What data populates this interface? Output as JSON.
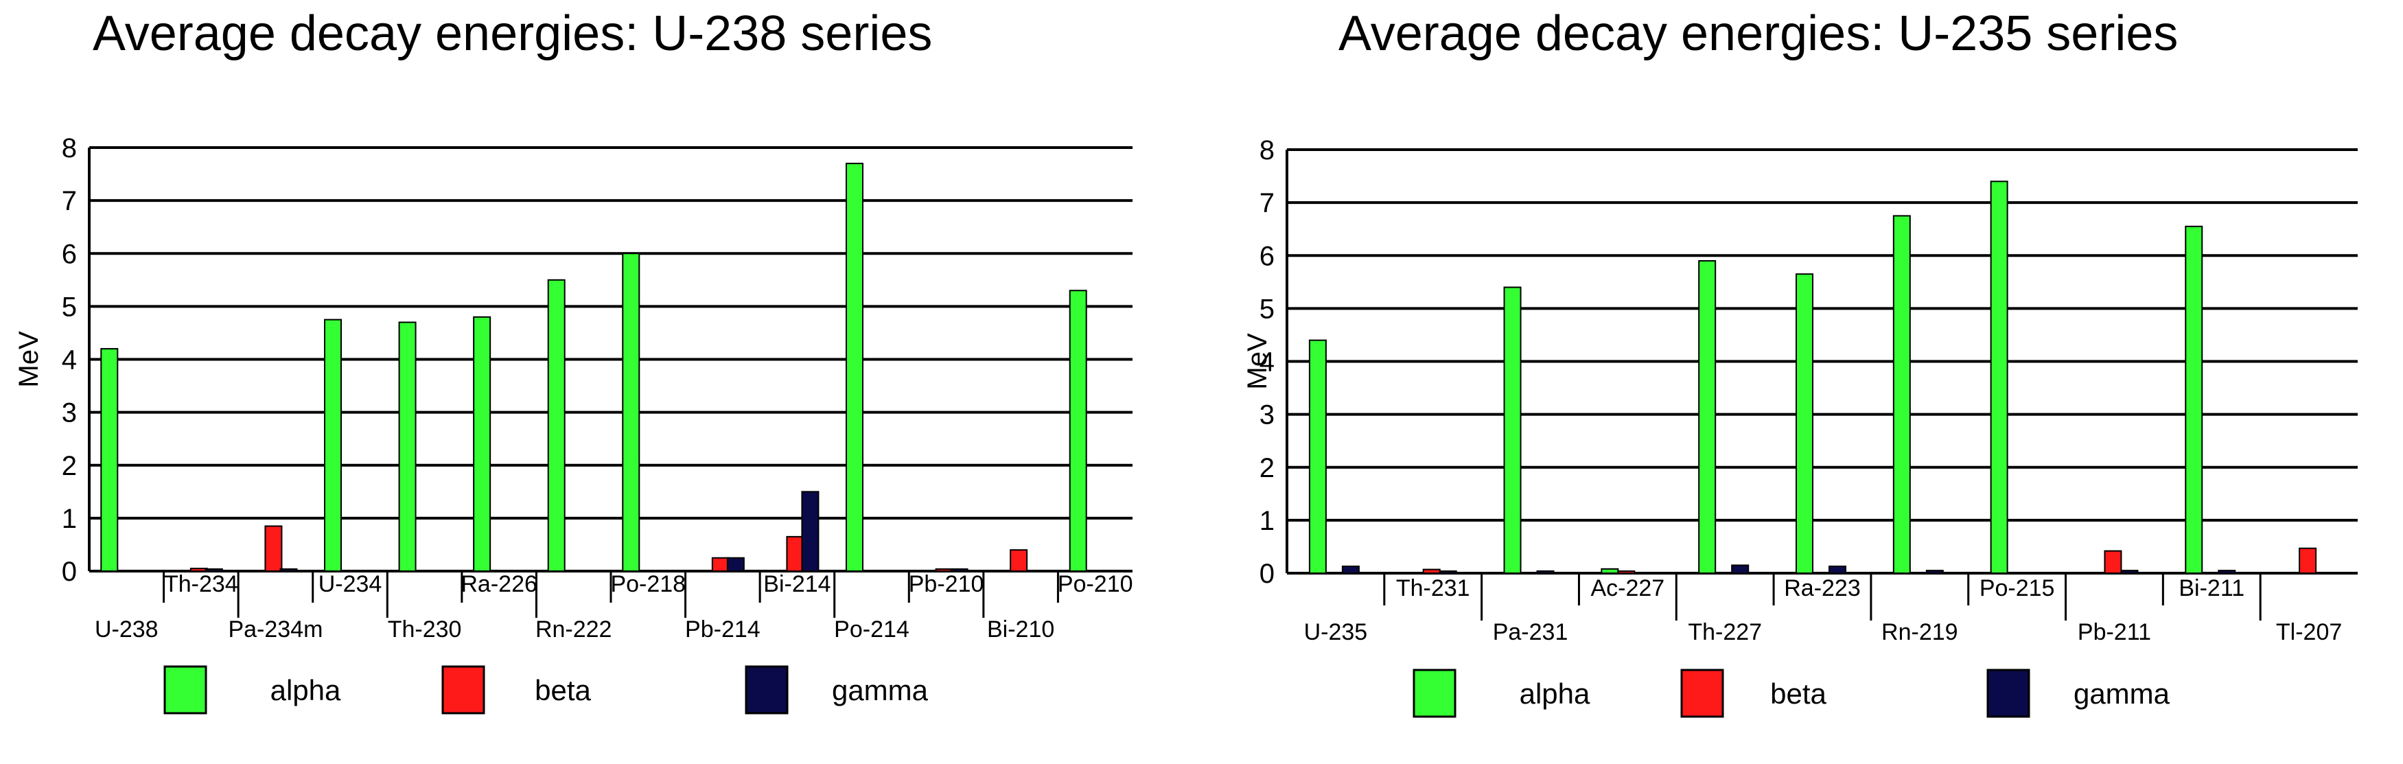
{
  "colors": {
    "alpha": "#33ff33",
    "beta": "#ff1a1a",
    "gamma": "#0a0a4a"
  },
  "chart_data": [
    {
      "type": "bar",
      "title": "Average decay energies:  U-238 series",
      "ylabel": "MeV",
      "xlabel": "",
      "ylim": [
        0,
        8
      ],
      "yticks": [
        0,
        1,
        2,
        3,
        4,
        5,
        6,
        7,
        8
      ],
      "grid": true,
      "categories": [
        "U-238",
        "Th-234",
        "Pa-234m",
        "U-234",
        "Th-230",
        "Ra-226",
        "Rn-222",
        "Po-218",
        "Pb-214",
        "Bi-214",
        "Po-214",
        "Pb-210",
        "Bi-210",
        "Po-210"
      ],
      "series": [
        {
          "name": "alpha",
          "values": [
            4.2,
            0,
            0,
            4.75,
            4.7,
            4.8,
            5.5,
            6.0,
            0,
            0,
            7.7,
            0,
            0,
            5.3
          ]
        },
        {
          "name": "beta",
          "values": [
            0,
            0.05,
            0.85,
            0,
            0,
            0,
            0,
            0,
            0.25,
            0.65,
            0,
            0.01,
            0.4,
            0
          ]
        },
        {
          "name": "gamma",
          "values": [
            0,
            0.02,
            0.01,
            0,
            0,
            0,
            0,
            0,
            0.25,
            1.5,
            0,
            0.01,
            0,
            0
          ]
        }
      ],
      "legend": [
        "alpha",
        "beta",
        "gamma"
      ],
      "legend_position": "bottom"
    },
    {
      "type": "bar",
      "title": "Average decay energies:  U-235 series",
      "ylabel": "MeV",
      "xlabel": "",
      "ylim": [
        0,
        8
      ],
      "yticks": [
        0,
        1,
        2,
        3,
        4,
        5,
        6,
        7,
        8
      ],
      "grid": true,
      "categories": [
        "U-235",
        "Th-231",
        "Pa-231",
        "Ac-227",
        "Th-227",
        "Ra-223",
        "Rn-219",
        "Po-215",
        "Pb-211",
        "Bi-211",
        "Tl-207"
      ],
      "series": [
        {
          "name": "alpha",
          "values": [
            4.4,
            0,
            5.4,
            0.08,
            5.9,
            5.65,
            6.75,
            7.4,
            0,
            6.55,
            0
          ]
        },
        {
          "name": "beta",
          "values": [
            0,
            0.07,
            0,
            0.01,
            0,
            0,
            0,
            0,
            0.42,
            0,
            0.47
          ]
        },
        {
          "name": "gamma",
          "values": [
            0.13,
            0.03,
            0.04,
            0,
            0.15,
            0.13,
            0.05,
            0,
            0.05,
            0.05,
            0
          ]
        }
      ],
      "legend": [
        "alpha",
        "beta",
        "gamma"
      ],
      "legend_position": "bottom"
    }
  ]
}
